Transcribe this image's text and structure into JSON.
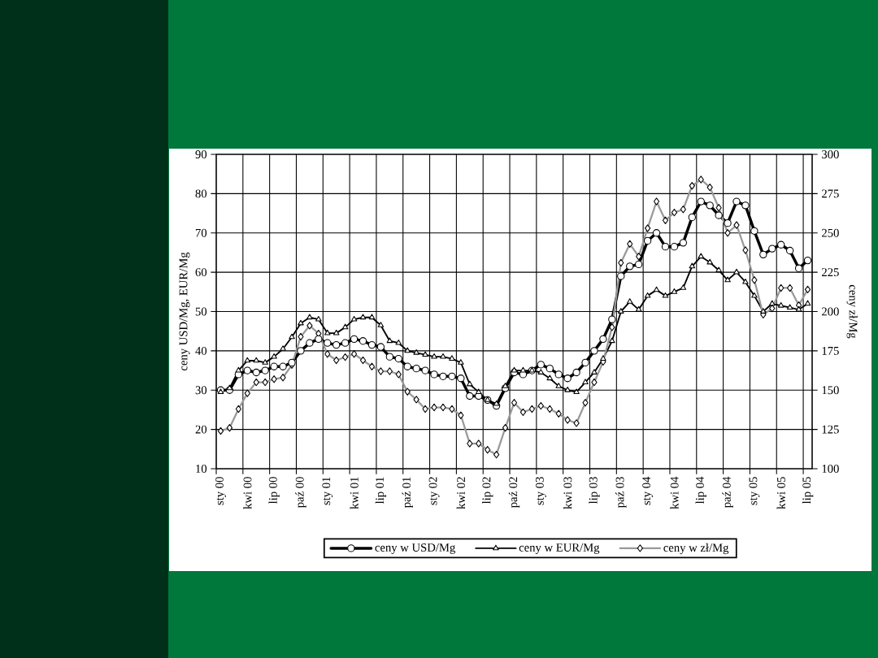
{
  "chart_data": {
    "type": "line",
    "categories": [
      "sty 00",
      null,
      null,
      "kwi 00",
      null,
      null,
      "lip 00",
      null,
      null,
      "paź 00",
      null,
      null,
      "sty 01",
      null,
      null,
      "kwi 01",
      null,
      null,
      "lip 01",
      null,
      null,
      "paź 01",
      null,
      null,
      "sty 02",
      null,
      null,
      "kwi 02",
      null,
      null,
      "lip 02",
      null,
      null,
      "paź 02",
      null,
      null,
      "sty 03",
      null,
      null,
      "kwi 03",
      null,
      null,
      "lip 03",
      null,
      null,
      "paź 03",
      null,
      null,
      "sty 04",
      null,
      null,
      "kwi 04",
      null,
      null,
      "lip 04",
      null,
      null,
      "paź 04",
      null,
      null,
      "sty 05",
      null,
      null,
      "kwi 05",
      null,
      null,
      "lip 05"
    ],
    "series": [
      {
        "name": "ceny w USD/Mg",
        "color": "#000000",
        "marker": "circle",
        "values": [
          30.0,
          30.0,
          34.0,
          35.0,
          34.5,
          35.0,
          36.0,
          36.0,
          37.0,
          40.0,
          42.0,
          43.0,
          42.0,
          41.5,
          42.0,
          43.0,
          42.5,
          41.5,
          41.0,
          38.5,
          38.0,
          36.0,
          35.5,
          35.0,
          34.0,
          33.5,
          33.5,
          33.0,
          28.5,
          28.5,
          27.5,
          26.0,
          30.5,
          34.5,
          34.0,
          35.0,
          36.5,
          35.5,
          34.0,
          33.0,
          34.5,
          37.0,
          40.0,
          43.0,
          48.0,
          59.0,
          61.5,
          62.0,
          68.0,
          70.0,
          66.5,
          66.5,
          67.5,
          74.0,
          78.0,
          77.0,
          74.5,
          72.5,
          78.0,
          77.0,
          70.5,
          64.5,
          66.0,
          67.0,
          65.5,
          61.0,
          63.0
        ]
      },
      {
        "name": "ceny w EUR/Mg",
        "color": "#000000",
        "marker": "triangle",
        "values": [
          29.5,
          30.5,
          35.0,
          37.5,
          37.5,
          37.0,
          38.5,
          40.5,
          43.5,
          47.0,
          48.5,
          48.0,
          44.5,
          44.5,
          46.0,
          48.0,
          48.5,
          48.5,
          46.5,
          42.5,
          42.0,
          40.0,
          39.5,
          39.0,
          38.5,
          38.5,
          38.0,
          37.0,
          31.5,
          29.5,
          27.5,
          26.5,
          31.0,
          35.0,
          35.0,
          35.0,
          34.5,
          33.0,
          31.0,
          30.0,
          29.5,
          32.0,
          34.5,
          38.0,
          42.5,
          50.0,
          52.5,
          50.5,
          54.0,
          55.5,
          54.0,
          55.0,
          56.0,
          61.5,
          64.0,
          62.5,
          60.5,
          58.0,
          60.0,
          57.5,
          54.0,
          50.0,
          52.0,
          51.5,
          51.0,
          50.5,
          52.0
        ]
      },
      {
        "name": "ceny w zł/Mg",
        "color": "#999999",
        "marker": "diamond",
        "axis": "y2",
        "values": [
          124,
          126,
          138,
          148,
          155,
          155,
          157,
          158,
          166,
          184,
          191,
          186,
          173,
          169,
          171,
          173,
          169,
          165,
          162,
          162,
          160,
          149,
          144,
          138,
          139,
          139,
          138,
          134,
          116,
          116,
          112,
          109,
          126,
          142,
          136,
          138,
          140,
          138,
          135,
          131,
          129,
          142,
          155,
          168,
          190,
          231,
          243,
          235,
          253,
          270,
          258,
          263,
          265,
          280,
          284,
          279,
          266,
          250,
          255,
          239,
          220,
          198,
          202,
          215,
          215,
          204,
          214
        ]
      }
    ],
    "ylabel": "ceny USD/Mg, EUR/Mg",
    "y2label": "ceny zł/Mg",
    "ylim": [
      10,
      90
    ],
    "yticks": [
      10,
      20,
      30,
      40,
      50,
      60,
      70,
      80,
      90
    ],
    "y2lim": [
      100,
      300
    ],
    "y2ticks": [
      100,
      125,
      150,
      175,
      200,
      225,
      250,
      275,
      300
    ],
    "grid": true,
    "legend": "bottom",
    "line_style": "solid"
  }
}
